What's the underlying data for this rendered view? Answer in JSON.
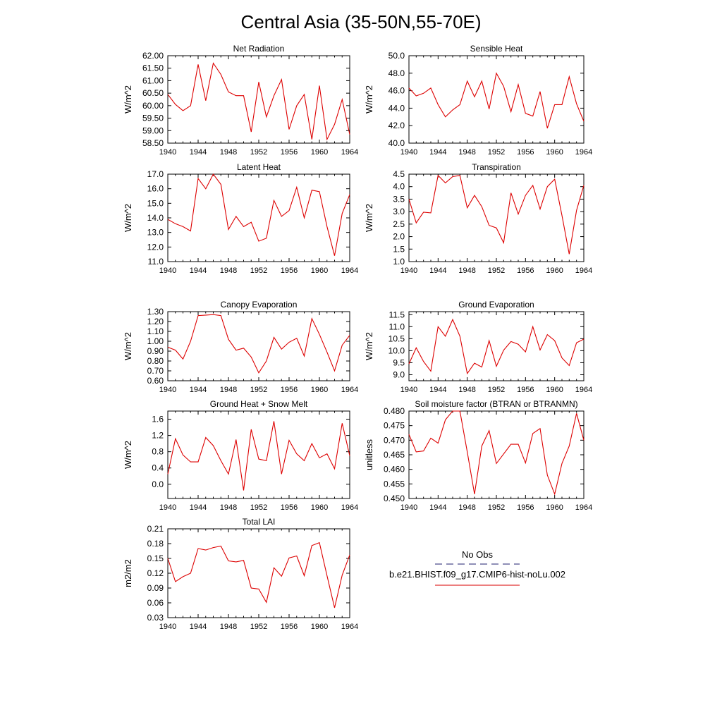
{
  "page": {
    "title": "Central Asia (35-50N,55-70E)"
  },
  "legend": {
    "obs_label": "No Obs",
    "obs_color": "#4a4a8a",
    "model_label": "b.e21.BHIST.f09_g17.CMIP6-hist-noLu.002",
    "model_color": "#e03030"
  },
  "line_color": "#dd0000",
  "chart_data": [
    {
      "type": "line",
      "title": "Net Radiation",
      "ylabel": "W/m^2",
      "xlim": [
        1940,
        1964
      ],
      "ylim": [
        58.5,
        62.0
      ],
      "xticks": [
        1940,
        1944,
        1948,
        1952,
        1956,
        1960,
        1964
      ],
      "yticks": [
        58.5,
        59.0,
        59.5,
        60.0,
        60.5,
        61.0,
        61.5,
        62.0
      ],
      "ytick_labels": [
        "58.50",
        "59.00",
        "59.50",
        "60.00",
        "60.50",
        "61.00",
        "61.50",
        "62.00"
      ],
      "x": [
        1940,
        1941,
        1942,
        1943,
        1944,
        1945,
        1946,
        1947,
        1948,
        1949,
        1950,
        1951,
        1952,
        1953,
        1954,
        1955,
        1956,
        1957,
        1958,
        1959,
        1960,
        1961,
        1962,
        1963,
        1964
      ],
      "y": [
        60.45,
        60.05,
        59.8,
        60.0,
        61.65,
        60.2,
        61.7,
        61.25,
        60.55,
        60.4,
        60.4,
        58.95,
        60.95,
        59.55,
        60.4,
        61.05,
        59.05,
        60.0,
        60.45,
        58.65,
        60.8,
        58.65,
        59.25,
        60.25,
        58.85
      ]
    },
    {
      "type": "line",
      "title": "Sensible Heat",
      "ylabel": "W/m^2",
      "xlim": [
        1940,
        1964
      ],
      "ylim": [
        40.0,
        50.0
      ],
      "xticks": [
        1940,
        1944,
        1948,
        1952,
        1956,
        1960,
        1964
      ],
      "yticks": [
        40.0,
        42.0,
        44.0,
        46.0,
        48.0,
        50.0
      ],
      "ytick_labels": [
        "40.0",
        "42.0",
        "44.0",
        "46.0",
        "48.0",
        "50.0"
      ],
      "x": [
        1940,
        1941,
        1942,
        1943,
        1944,
        1945,
        1946,
        1947,
        1948,
        1949,
        1950,
        1951,
        1952,
        1953,
        1954,
        1955,
        1956,
        1957,
        1958,
        1959,
        1960,
        1961,
        1962,
        1963,
        1964
      ],
      "y": [
        46.3,
        45.4,
        45.7,
        46.3,
        44.4,
        43.0,
        43.8,
        44.4,
        47.1,
        45.3,
        47.1,
        43.9,
        48.0,
        46.5,
        43.6,
        46.7,
        43.4,
        43.1,
        45.9,
        41.7,
        44.4,
        44.4,
        47.6,
        44.5,
        42.5
      ]
    },
    {
      "type": "line",
      "title": "Latent Heat",
      "ylabel": "W/m^2",
      "xlim": [
        1940,
        1964
      ],
      "ylim": [
        11.0,
        17.0
      ],
      "xticks": [
        1940,
        1944,
        1948,
        1952,
        1956,
        1960,
        1964
      ],
      "yticks": [
        11.0,
        12.0,
        13.0,
        14.0,
        15.0,
        16.0,
        17.0
      ],
      "ytick_labels": [
        "11.0",
        "12.0",
        "13.0",
        "14.0",
        "15.0",
        "16.0",
        "17.0"
      ],
      "x": [
        1940,
        1941,
        1942,
        1943,
        1944,
        1945,
        1946,
        1947,
        1948,
        1949,
        1950,
        1951,
        1952,
        1953,
        1954,
        1955,
        1956,
        1957,
        1958,
        1959,
        1960,
        1961,
        1962,
        1963,
        1964
      ],
      "y": [
        13.9,
        13.6,
        13.4,
        13.1,
        16.7,
        16.0,
        17.0,
        16.3,
        13.2,
        14.1,
        13.4,
        13.7,
        12.4,
        12.6,
        15.2,
        14.1,
        14.5,
        16.1,
        14.0,
        15.9,
        15.8,
        13.4,
        11.4,
        14.3,
        15.6
      ]
    },
    {
      "type": "line",
      "title": "Transpiration",
      "ylabel": "W/m^2",
      "xlim": [
        1940,
        1964
      ],
      "ylim": [
        1.0,
        4.5
      ],
      "xticks": [
        1940,
        1944,
        1948,
        1952,
        1956,
        1960,
        1964
      ],
      "yticks": [
        1.0,
        1.5,
        2.0,
        2.5,
        3.0,
        3.5,
        4.0,
        4.5
      ],
      "ytick_labels": [
        "1.0",
        "1.5",
        "2.0",
        "2.5",
        "3.0",
        "3.5",
        "4.0",
        "4.5"
      ],
      "x": [
        1940,
        1941,
        1942,
        1943,
        1944,
        1945,
        1946,
        1947,
        1948,
        1949,
        1950,
        1951,
        1952,
        1953,
        1954,
        1955,
        1956,
        1957,
        1958,
        1959,
        1960,
        1961,
        1962,
        1963,
        1964
      ],
      "y": [
        3.5,
        2.55,
        2.98,
        2.95,
        4.45,
        4.15,
        4.4,
        4.45,
        3.15,
        3.65,
        3.2,
        2.45,
        2.35,
        1.75,
        3.75,
        2.9,
        3.65,
        4.05,
        3.1,
        4.0,
        4.3,
        2.85,
        1.3,
        3.05,
        4.05
      ]
    },
    {
      "type": "line",
      "title": "Canopy Evaporation",
      "ylabel": "W/m^2",
      "xlim": [
        1940,
        1964
      ],
      "ylim": [
        0.6,
        1.3
      ],
      "xticks": [
        1940,
        1944,
        1948,
        1952,
        1956,
        1960,
        1964
      ],
      "yticks": [
        0.6,
        0.7,
        0.8,
        0.9,
        1.0,
        1.1,
        1.2,
        1.3
      ],
      "ytick_labels": [
        "0.60",
        "0.70",
        "0.80",
        "0.90",
        "1.00",
        "1.10",
        "1.20",
        "1.30"
      ],
      "x": [
        1940,
        1941,
        1942,
        1943,
        1944,
        1945,
        1946,
        1947,
        1948,
        1949,
        1950,
        1951,
        1952,
        1953,
        1954,
        1955,
        1956,
        1957,
        1958,
        1959,
        1960,
        1961,
        1962,
        1963,
        1964
      ],
      "y": [
        0.94,
        0.91,
        0.82,
        1.0,
        1.26,
        1.265,
        1.27,
        1.26,
        1.02,
        0.91,
        0.93,
        0.84,
        0.68,
        0.8,
        1.04,
        0.92,
        0.99,
        1.03,
        0.85,
        1.23,
        1.07,
        0.89,
        0.7,
        0.96,
        1.06
      ]
    },
    {
      "type": "line",
      "title": "Ground Evaporation",
      "ylabel": "W/m^2",
      "xlim": [
        1940,
        1964
      ],
      "ylim": [
        8.75,
        11.625
      ],
      "xticks": [
        1940,
        1944,
        1948,
        1952,
        1956,
        1960,
        1964
      ],
      "yticks": [
        9.0,
        9.5,
        10.0,
        10.5,
        11.0,
        11.5
      ],
      "ytick_labels": [
        "9.0",
        "9.5",
        "10.0",
        "10.5",
        "11.0",
        "11.5"
      ],
      "x": [
        1940,
        1941,
        1942,
        1943,
        1944,
        1945,
        1946,
        1947,
        1948,
        1949,
        1950,
        1951,
        1952,
        1953,
        1954,
        1955,
        1956,
        1957,
        1958,
        1959,
        1960,
        1961,
        1962,
        1963,
        1964
      ],
      "y": [
        9.45,
        10.12,
        9.55,
        9.15,
        11.0,
        10.6,
        11.3,
        10.6,
        9.05,
        9.48,
        9.32,
        10.42,
        9.35,
        10.02,
        10.38,
        10.27,
        9.95,
        11.0,
        10.03,
        10.67,
        10.42,
        9.7,
        9.38,
        10.33,
        10.48
      ]
    },
    {
      "type": "line",
      "title": "Ground Heat + Snow Melt",
      "ylabel": "W/m^2",
      "xlim": [
        1940,
        1964
      ],
      "ylim": [
        -0.35,
        1.8
      ],
      "xticks": [
        1940,
        1944,
        1948,
        1952,
        1956,
        1960,
        1964
      ],
      "yticks": [
        0.0,
        0.4,
        0.8,
        1.2,
        1.6
      ],
      "ytick_labels": [
        "0.0",
        "0.4",
        "0.8",
        "1.2",
        "1.6"
      ],
      "x": [
        1940,
        1941,
        1942,
        1943,
        1944,
        1945,
        1946,
        1947,
        1948,
        1949,
        1950,
        1951,
        1952,
        1953,
        1954,
        1955,
        1956,
        1957,
        1958,
        1959,
        1960,
        1961,
        1962,
        1963,
        1964
      ],
      "y": [
        0.25,
        1.12,
        0.72,
        0.55,
        0.55,
        1.15,
        0.95,
        0.58,
        0.25,
        1.1,
        -0.15,
        1.35,
        0.62,
        0.58,
        1.55,
        0.25,
        1.08,
        0.75,
        0.58,
        1.0,
        0.65,
        0.75,
        0.38,
        1.5,
        0.7
      ]
    },
    {
      "type": "line",
      "title": "Soil moisture factor (BTRAN or BTRANMN)",
      "ylabel": "unitless",
      "xlim": [
        1940,
        1964
      ],
      "ylim": [
        0.45,
        0.48
      ],
      "xticks": [
        1940,
        1944,
        1948,
        1952,
        1956,
        1960,
        1964
      ],
      "yticks": [
        0.45,
        0.455,
        0.46,
        0.465,
        0.47,
        0.475,
        0.48
      ],
      "ytick_labels": [
        "0.450",
        "0.455",
        "0.460",
        "0.465",
        "0.470",
        "0.475",
        "0.480"
      ],
      "x": [
        1940,
        1941,
        1942,
        1943,
        1944,
        1945,
        1946,
        1947,
        1948,
        1949,
        1950,
        1951,
        1952,
        1953,
        1954,
        1955,
        1956,
        1957,
        1958,
        1959,
        1960,
        1961,
        1962,
        1963,
        1964
      ],
      "y": [
        0.472,
        0.466,
        0.4663,
        0.4707,
        0.469,
        0.477,
        0.48,
        0.48,
        0.466,
        0.4515,
        0.468,
        0.4733,
        0.462,
        0.4653,
        0.4686,
        0.4686,
        0.4622,
        0.4723,
        0.474,
        0.458,
        0.4515,
        0.462,
        0.468,
        0.4792,
        0.47
      ]
    },
    {
      "type": "line",
      "title": "Total LAI",
      "ylabel": "m2/m2",
      "xlim": [
        1940,
        1964
      ],
      "ylim": [
        0.03,
        0.21
      ],
      "xticks": [
        1940,
        1944,
        1948,
        1952,
        1956,
        1960,
        1964
      ],
      "yticks": [
        0.03,
        0.06,
        0.09,
        0.12,
        0.15,
        0.18,
        0.21
      ],
      "ytick_labels": [
        "0.03",
        "0.06",
        "0.09",
        "0.12",
        "0.15",
        "0.18",
        "0.21"
      ],
      "x": [
        1940,
        1941,
        1942,
        1943,
        1944,
        1945,
        1946,
        1947,
        1948,
        1949,
        1950,
        1951,
        1952,
        1953,
        1954,
        1955,
        1956,
        1957,
        1958,
        1959,
        1960,
        1961,
        1962,
        1963,
        1964
      ],
      "y": [
        0.15,
        0.103,
        0.113,
        0.12,
        0.17,
        0.167,
        0.172,
        0.175,
        0.145,
        0.143,
        0.146,
        0.09,
        0.088,
        0.061,
        0.131,
        0.114,
        0.151,
        0.155,
        0.115,
        0.176,
        0.182,
        0.115,
        0.05,
        0.116,
        0.157
      ]
    }
  ]
}
